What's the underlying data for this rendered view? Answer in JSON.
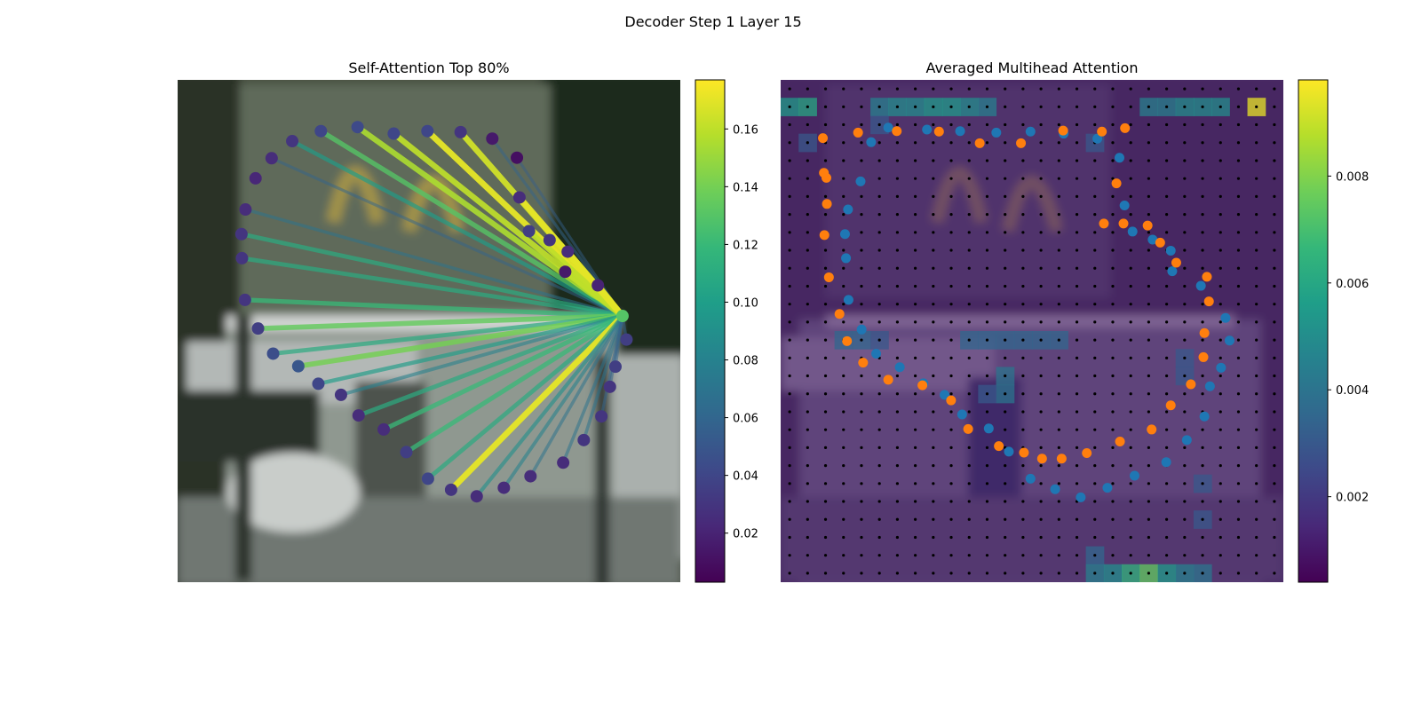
{
  "figure": {
    "suptitle": "Decoder Step 1 Layer 15"
  },
  "colormap": {
    "name": "viridis",
    "stops": [
      "#440154",
      "#482878",
      "#3e4989",
      "#31688e",
      "#26828e",
      "#1f9e89",
      "#35b779",
      "#6ece58",
      "#b5de2b",
      "#fde725"
    ]
  },
  "colors": {
    "blue_points": "#1f77b4",
    "orange_points": "#ff7f0e",
    "grid_dots": "#000000"
  },
  "chart_data": [
    {
      "type": "scatter",
      "title": "Self-Attention Top 80%",
      "background": "blurred photo (McDonald's sign behind a white truck)",
      "xlim": [
        0,
        1
      ],
      "ylim": [
        1,
        0
      ],
      "query": {
        "x": 0.885,
        "y": 0.47,
        "value": 0.13
      },
      "points": [
        {
          "x": 0.285,
          "y": 0.102,
          "w": 0.04
        },
        {
          "x": 0.358,
          "y": 0.094,
          "w": 0.042
        },
        {
          "x": 0.43,
          "y": 0.107,
          "w": 0.04
        },
        {
          "x": 0.497,
          "y": 0.102,
          "w": 0.04
        },
        {
          "x": 0.563,
          "y": 0.104,
          "w": 0.03
        },
        {
          "x": 0.626,
          "y": 0.117,
          "w": 0.015
        },
        {
          "x": 0.675,
          "y": 0.155,
          "w": 0.01
        },
        {
          "x": 0.228,
          "y": 0.122,
          "w": 0.03
        },
        {
          "x": 0.187,
          "y": 0.156,
          "w": 0.025
        },
        {
          "x": 0.155,
          "y": 0.196,
          "w": 0.022
        },
        {
          "x": 0.135,
          "y": 0.258,
          "w": 0.025
        },
        {
          "x": 0.127,
          "y": 0.307,
          "w": 0.03
        },
        {
          "x": 0.128,
          "y": 0.355,
          "w": 0.03
        },
        {
          "x": 0.134,
          "y": 0.438,
          "w": 0.03
        },
        {
          "x": 0.16,
          "y": 0.495,
          "w": 0.035
        },
        {
          "x": 0.19,
          "y": 0.545,
          "w": 0.045
        },
        {
          "x": 0.24,
          "y": 0.57,
          "w": 0.05
        },
        {
          "x": 0.28,
          "y": 0.605,
          "w": 0.04
        },
        {
          "x": 0.325,
          "y": 0.627,
          "w": 0.03
        },
        {
          "x": 0.36,
          "y": 0.668,
          "w": 0.025
        },
        {
          "x": 0.41,
          "y": 0.696,
          "w": 0.025
        },
        {
          "x": 0.455,
          "y": 0.741,
          "w": 0.035
        },
        {
          "x": 0.498,
          "y": 0.794,
          "w": 0.04
        },
        {
          "x": 0.544,
          "y": 0.816,
          "w": 0.03
        },
        {
          "x": 0.595,
          "y": 0.829,
          "w": 0.025
        },
        {
          "x": 0.649,
          "y": 0.812,
          "w": 0.025
        },
        {
          "x": 0.702,
          "y": 0.789,
          "w": 0.025
        },
        {
          "x": 0.767,
          "y": 0.762,
          "w": 0.025
        },
        {
          "x": 0.808,
          "y": 0.717,
          "w": 0.03
        },
        {
          "x": 0.843,
          "y": 0.67,
          "w": 0.03
        },
        {
          "x": 0.86,
          "y": 0.611,
          "w": 0.03
        },
        {
          "x": 0.871,
          "y": 0.571,
          "w": 0.035
        },
        {
          "x": 0.893,
          "y": 0.517,
          "w": 0.035
        },
        {
          "x": 0.836,
          "y": 0.409,
          "w": 0.02
        },
        {
          "x": 0.771,
          "y": 0.382,
          "w": 0.015
        },
        {
          "x": 0.776,
          "y": 0.342,
          "w": 0.025
        },
        {
          "x": 0.74,
          "y": 0.319,
          "w": 0.03
        },
        {
          "x": 0.699,
          "y": 0.301,
          "w": 0.035
        },
        {
          "x": 0.68,
          "y": 0.234,
          "w": 0.025
        }
      ],
      "edges": [
        {
          "to": 0,
          "w": 0.13
        },
        {
          "to": 1,
          "w": 0.155
        },
        {
          "to": 2,
          "w": 0.16
        },
        {
          "to": 3,
          "w": 0.17
        },
        {
          "to": 4,
          "w": 0.165
        },
        {
          "to": 5,
          "w": 0.06
        },
        {
          "to": 6,
          "w": 0.055
        },
        {
          "to": 7,
          "w": 0.1
        },
        {
          "to": 8,
          "w": 0.06
        },
        {
          "to": 10,
          "w": 0.07
        },
        {
          "to": 11,
          "w": 0.11
        },
        {
          "to": 12,
          "w": 0.11
        },
        {
          "to": 13,
          "w": 0.12
        },
        {
          "to": 14,
          "w": 0.135
        },
        {
          "to": 15,
          "w": 0.11
        },
        {
          "to": 16,
          "w": 0.14
        },
        {
          "to": 17,
          "w": 0.1
        },
        {
          "to": 18,
          "w": 0.08
        },
        {
          "to": 19,
          "w": 0.11
        },
        {
          "to": 20,
          "w": 0.12
        },
        {
          "to": 21,
          "w": 0.12
        },
        {
          "to": 22,
          "w": 0.11
        },
        {
          "to": 23,
          "w": 0.17
        },
        {
          "to": 24,
          "w": 0.09
        },
        {
          "to": 25,
          "w": 0.08
        },
        {
          "to": 26,
          "w": 0.07
        },
        {
          "to": 27,
          "w": 0.07
        },
        {
          "to": 28,
          "w": 0.07
        },
        {
          "to": 29,
          "w": 0.06
        },
        {
          "to": 30,
          "w": 0.06
        },
        {
          "to": 31,
          "w": 0.06
        },
        {
          "to": 32,
          "w": 0.06
        },
        {
          "to": 33,
          "w": 0.17
        },
        {
          "to": 34,
          "w": 0.16
        },
        {
          "to": 35,
          "w": 0.17
        },
        {
          "to": 36,
          "w": 0.17
        },
        {
          "to": 37,
          "w": 0.16
        },
        {
          "to": 38,
          "w": 0.17
        }
      ],
      "colorbar": {
        "vmin": 0.003,
        "vmax": 0.177,
        "ticks": [
          0.02,
          0.04,
          0.06,
          0.08,
          0.1,
          0.12,
          0.14,
          0.16
        ],
        "tick_labels": [
          "0.02",
          "0.04",
          "0.06",
          "0.08",
          "0.10",
          "0.12",
          "0.14",
          "0.16"
        ]
      }
    },
    {
      "type": "heatmap",
      "title": "Averaged Multihead Attention",
      "background": "blurred photo (McDonald's sign behind a white truck)",
      "grid": {
        "rows": 28,
        "cols": 28
      },
      "hot_cells": [
        {
          "r": 1,
          "c": 0,
          "v": 0.0055
        },
        {
          "r": 1,
          "c": 1,
          "v": 0.006
        },
        {
          "r": 1,
          "c": 5,
          "v": 0.0045
        },
        {
          "r": 1,
          "c": 6,
          "v": 0.005
        },
        {
          "r": 1,
          "c": 7,
          "v": 0.005
        },
        {
          "r": 1,
          "c": 8,
          "v": 0.0055
        },
        {
          "r": 1,
          "c": 9,
          "v": 0.0055
        },
        {
          "r": 1,
          "c": 10,
          "v": 0.005
        },
        {
          "r": 1,
          "c": 11,
          "v": 0.0045
        },
        {
          "r": 1,
          "c": 20,
          "v": 0.0045
        },
        {
          "r": 1,
          "c": 21,
          "v": 0.0045
        },
        {
          "r": 1,
          "c": 22,
          "v": 0.005
        },
        {
          "r": 1,
          "c": 23,
          "v": 0.005
        },
        {
          "r": 1,
          "c": 24,
          "v": 0.005
        },
        {
          "r": 1,
          "c": 26,
          "v": 0.0095
        },
        {
          "r": 3,
          "c": 1,
          "v": 0.003
        },
        {
          "r": 2,
          "c": 5,
          "v": 0.003
        },
        {
          "r": 3,
          "c": 17,
          "v": 0.003
        },
        {
          "r": 14,
          "c": 3,
          "v": 0.0035
        },
        {
          "r": 14,
          "c": 4,
          "v": 0.0035
        },
        {
          "r": 14,
          "c": 5,
          "v": 0.003
        },
        {
          "r": 14,
          "c": 10,
          "v": 0.0035
        },
        {
          "r": 14,
          "c": 11,
          "v": 0.0035
        },
        {
          "r": 14,
          "c": 12,
          "v": 0.0035
        },
        {
          "r": 14,
          "c": 13,
          "v": 0.0035
        },
        {
          "r": 14,
          "c": 14,
          "v": 0.0035
        },
        {
          "r": 14,
          "c": 15,
          "v": 0.0035
        },
        {
          "r": 16,
          "c": 12,
          "v": 0.004
        },
        {
          "r": 17,
          "c": 12,
          "v": 0.004
        },
        {
          "r": 17,
          "c": 11,
          "v": 0.003
        },
        {
          "r": 15,
          "c": 22,
          "v": 0.003
        },
        {
          "r": 16,
          "c": 22,
          "v": 0.003
        },
        {
          "r": 22,
          "c": 23,
          "v": 0.003
        },
        {
          "r": 24,
          "c": 23,
          "v": 0.003
        },
        {
          "r": 26,
          "c": 17,
          "v": 0.0035
        },
        {
          "r": 27,
          "c": 17,
          "v": 0.0045
        },
        {
          "r": 27,
          "c": 18,
          "v": 0.005
        },
        {
          "r": 27,
          "c": 19,
          "v": 0.0065
        },
        {
          "r": 27,
          "c": 20,
          "v": 0.0075
        },
        {
          "r": 27,
          "c": 21,
          "v": 0.0055
        },
        {
          "r": 27,
          "c": 22,
          "v": 0.0045
        },
        {
          "r": 27,
          "c": 23,
          "v": 0.004
        }
      ],
      "series": [
        {
          "color": "blue",
          "points": [
            [
              0.159,
              0.202
            ],
            [
              0.18,
              0.124
            ],
            [
              0.214,
              0.095
            ],
            [
              0.291,
              0.099
            ],
            [
              0.357,
              0.102
            ],
            [
              0.429,
              0.105
            ],
            [
              0.497,
              0.103
            ],
            [
              0.563,
              0.107
            ],
            [
              0.63,
              0.117
            ],
            [
              0.674,
              0.155
            ],
            [
              0.684,
              0.25
            ],
            [
              0.7,
              0.302
            ],
            [
              0.74,
              0.318
            ],
            [
              0.776,
              0.34
            ],
            [
              0.779,
              0.381
            ],
            [
              0.836,
              0.41
            ],
            [
              0.885,
              0.474
            ],
            [
              0.893,
              0.519
            ],
            [
              0.876,
              0.573
            ],
            [
              0.854,
              0.61
            ],
            [
              0.843,
              0.67
            ],
            [
              0.808,
              0.717
            ],
            [
              0.767,
              0.761
            ],
            [
              0.704,
              0.788
            ],
            [
              0.65,
              0.812
            ],
            [
              0.597,
              0.831
            ],
            [
              0.546,
              0.815
            ],
            [
              0.497,
              0.794
            ],
            [
              0.454,
              0.74
            ],
            [
              0.414,
              0.694
            ],
            [
              0.361,
              0.666
            ],
            [
              0.326,
              0.627
            ],
            [
              0.284,
              0.604
            ],
            [
              0.237,
              0.572
            ],
            [
              0.19,
              0.545
            ],
            [
              0.161,
              0.497
            ],
            [
              0.135,
              0.438
            ],
            [
              0.13,
              0.355
            ],
            [
              0.128,
              0.307
            ],
            [
              0.134,
              0.258
            ]
          ]
        },
        {
          "color": "orange",
          "points": [
            [
              0.084,
              0.116
            ],
            [
              0.154,
              0.105
            ],
            [
              0.231,
              0.102
            ],
            [
              0.315,
              0.103
            ],
            [
              0.396,
              0.126
            ],
            [
              0.478,
              0.126
            ],
            [
              0.562,
              0.101
            ],
            [
              0.639,
              0.103
            ],
            [
              0.685,
              0.096
            ],
            [
              0.668,
              0.206
            ],
            [
              0.643,
              0.286
            ],
            [
              0.682,
              0.286
            ],
            [
              0.73,
              0.29
            ],
            [
              0.755,
              0.324
            ],
            [
              0.787,
              0.364
            ],
            [
              0.848,
              0.392
            ],
            [
              0.852,
              0.441
            ],
            [
              0.843,
              0.504
            ],
            [
              0.841,
              0.552
            ],
            [
              0.816,
              0.606
            ],
            [
              0.776,
              0.648
            ],
            [
              0.738,
              0.696
            ],
            [
              0.675,
              0.72
            ],
            [
              0.609,
              0.743
            ],
            [
              0.559,
              0.754
            ],
            [
              0.52,
              0.754
            ],
            [
              0.484,
              0.742
            ],
            [
              0.434,
              0.729
            ],
            [
              0.373,
              0.695
            ],
            [
              0.339,
              0.638
            ],
            [
              0.282,
              0.608
            ],
            [
              0.214,
              0.597
            ],
            [
              0.164,
              0.563
            ],
            [
              0.132,
              0.52
            ],
            [
              0.117,
              0.466
            ],
            [
              0.096,
              0.393
            ],
            [
              0.087,
              0.309
            ],
            [
              0.092,
              0.247
            ],
            [
              0.091,
              0.195
            ],
            [
              0.086,
              0.185
            ]
          ]
        }
      ],
      "colorbar": {
        "vmin": 0.0004,
        "vmax": 0.0098,
        "ticks": [
          0.002,
          0.004,
          0.006,
          0.008
        ],
        "tick_labels": [
          "0.002",
          "0.004",
          "0.006",
          "0.008"
        ]
      }
    }
  ]
}
